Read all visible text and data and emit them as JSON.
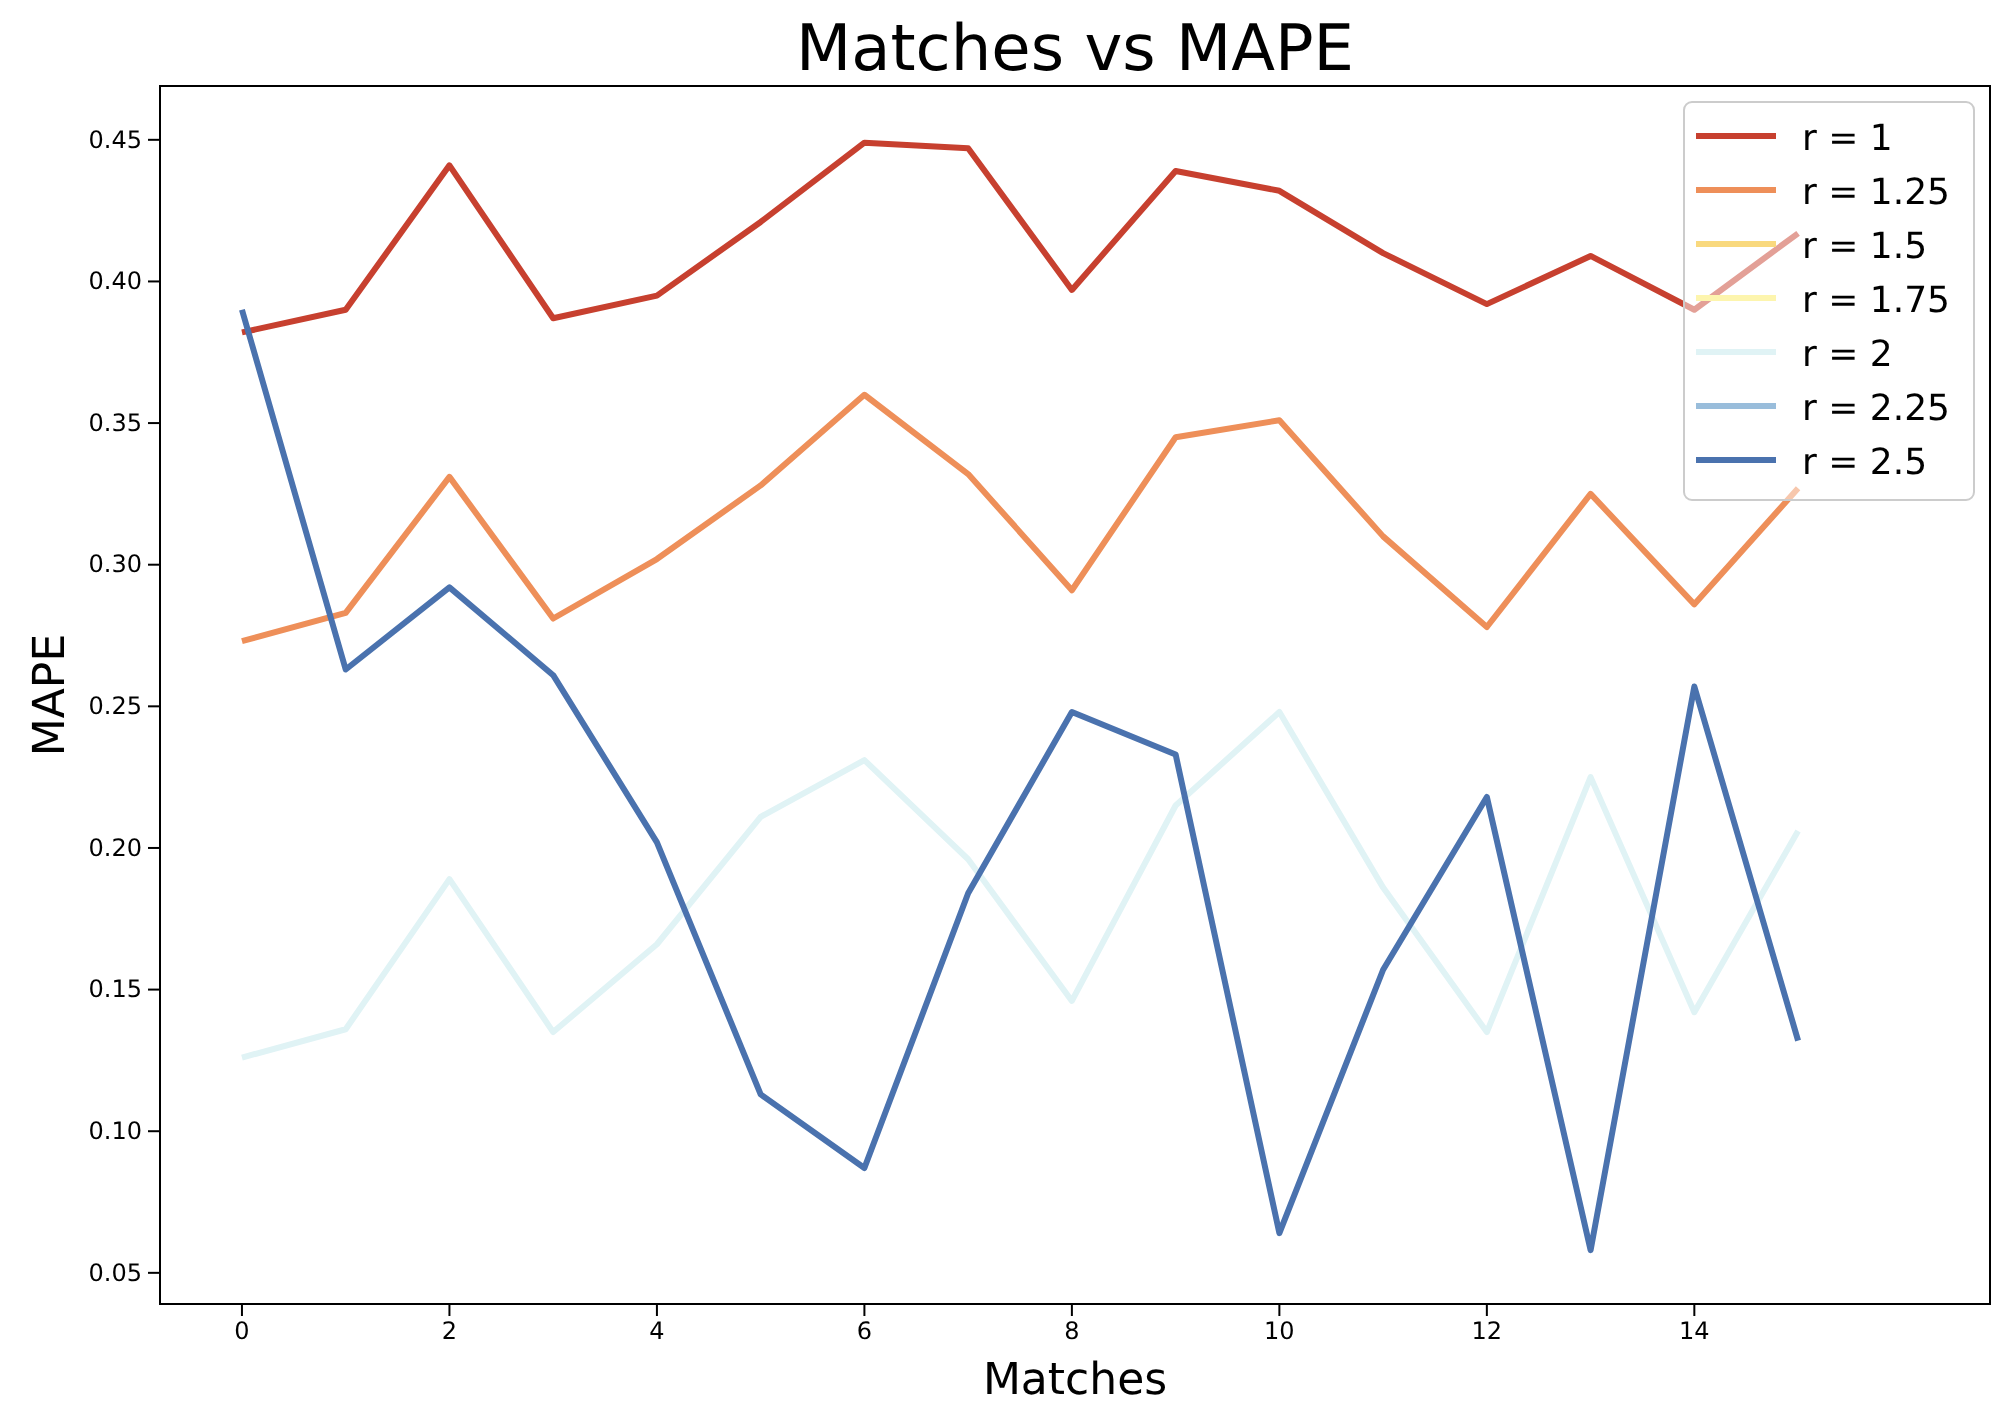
{
  "chart_data": {
    "type": "line",
    "title": "Matches vs MAPE",
    "xlabel": "Matches",
    "ylabel": "MAPE",
    "x": [
      0,
      1,
      2,
      3,
      4,
      5,
      6,
      7,
      8,
      9,
      10,
      11,
      12,
      13,
      14,
      15
    ],
    "xlim": [
      -0.79,
      16.85
    ],
    "xticks": [
      0,
      2,
      4,
      6,
      8,
      10,
      12,
      14
    ],
    "ylim": [
      0.039,
      0.469
    ],
    "yticks": [
      {
        "value": 0.05,
        "label": "0.05"
      },
      {
        "value": 0.1,
        "label": "0.10"
      },
      {
        "value": 0.15,
        "label": "0.15"
      },
      {
        "value": 0.2,
        "label": "0.20"
      },
      {
        "value": 0.25,
        "label": "0.25"
      },
      {
        "value": 0.3,
        "label": "0.30"
      },
      {
        "value": 0.35,
        "label": "0.35"
      },
      {
        "value": 0.4,
        "label": "0.40"
      },
      {
        "value": 0.45,
        "label": "0.45"
      }
    ],
    "legend": "top right",
    "grid": false,
    "line_style": "solid",
    "series": [
      {
        "name": "r = 1",
        "color": "#c7402f",
        "values": [
          0.382,
          0.39,
          0.441,
          0.387,
          0.395,
          0.421,
          0.449,
          0.447,
          0.397,
          0.439,
          0.432,
          0.41,
          0.392,
          0.409,
          0.39,
          0.417
        ]
      },
      {
        "name": "r = 1.25",
        "color": "#ee8f59",
        "values": [
          0.273,
          0.283,
          0.331,
          0.281,
          0.302,
          0.328,
          0.36,
          0.332,
          0.291,
          0.345,
          0.351,
          0.31,
          0.278,
          0.325,
          0.286,
          0.327
        ]
      },
      {
        "name": "r = 1.5",
        "color": "#f9d97e",
        "values": [
          null,
          null,
          null,
          null,
          null,
          null,
          null,
          null,
          null,
          null,
          null,
          null,
          null,
          null,
          null,
          null
        ]
      },
      {
        "name": "r = 1.75",
        "color": "#fdf5ae",
        "values": [
          null,
          null,
          null,
          null,
          null,
          null,
          null,
          null,
          null,
          null,
          null,
          null,
          null,
          null,
          null,
          null
        ]
      },
      {
        "name": "r = 2",
        "color": "#e0f3f5",
        "values": [
          0.126,
          0.136,
          0.189,
          0.135,
          0.166,
          0.211,
          0.231,
          0.196,
          0.146,
          0.215,
          0.248,
          0.186,
          0.135,
          0.225,
          0.142,
          0.206
        ]
      },
      {
        "name": "r = 2.25",
        "color": "#99bddb",
        "values": [
          null,
          null,
          null,
          null,
          null,
          null,
          null,
          null,
          null,
          null,
          null,
          null,
          null,
          null,
          null,
          null
        ]
      },
      {
        "name": "r = 2.5",
        "color": "#4a72ae",
        "values": [
          0.39,
          0.263,
          0.292,
          0.261,
          0.202,
          0.113,
          0.087,
          0.184,
          0.248,
          0.233,
          0.064,
          0.157,
          0.218,
          0.058,
          0.257,
          0.132
        ]
      }
    ]
  }
}
